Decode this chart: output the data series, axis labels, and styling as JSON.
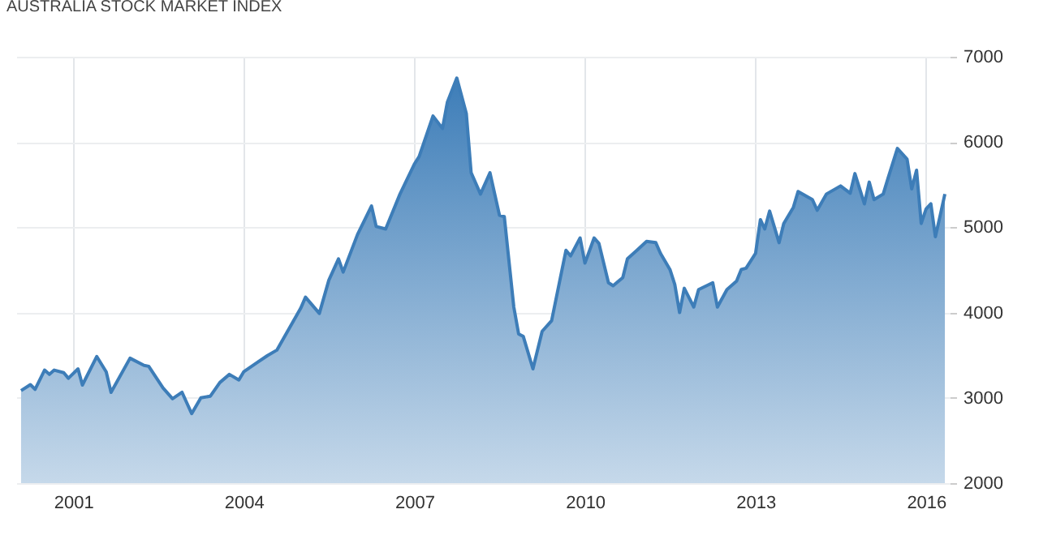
{
  "chart_data": {
    "type": "area",
    "title": "AUSTRALIA STOCK MARKET INDEX",
    "x": [
      "2000-02",
      "2000-04",
      "2000-05",
      "2000-07",
      "2000-08",
      "2000-09",
      "2000-11",
      "2000-12",
      "2001-02",
      "2001-03",
      "2001-06",
      "2001-08",
      "2001-09",
      "2002-01",
      "2002-04",
      "2002-05",
      "2002-08",
      "2002-10",
      "2002-12",
      "2003-02",
      "2003-04",
      "2003-06",
      "2003-08",
      "2003-10",
      "2003-12",
      "2004-01",
      "2004-04",
      "2004-06",
      "2004-08",
      "2005-01",
      "2005-02",
      "2005-05",
      "2005-07",
      "2005-09",
      "2005-10",
      "2006-01",
      "2006-04",
      "2006-05",
      "2006-07",
      "2006-10",
      "2007-01",
      "2007-02",
      "2007-05",
      "2007-07",
      "2007-08",
      "2007-10",
      "2007-12",
      "2008-01",
      "2008-03",
      "2008-05",
      "2008-07",
      "2008-08",
      "2008-10",
      "2008-11",
      "2008-12",
      "2009-02",
      "2009-04",
      "2009-06",
      "2009-09",
      "2009-10",
      "2009-12",
      "2010-01",
      "2010-03",
      "2010-04",
      "2010-06",
      "2010-07",
      "2010-09",
      "2010-10",
      "2010-12",
      "2011-02",
      "2011-04",
      "2011-05",
      "2011-07",
      "2011-08",
      "2011-09",
      "2011-10",
      "2011-12",
      "2012-01",
      "2012-04",
      "2012-05",
      "2012-07",
      "2012-09",
      "2012-10",
      "2012-11",
      "2013-01",
      "2013-02",
      "2013-03",
      "2013-04",
      "2013-06",
      "2013-07",
      "2013-09",
      "2013-10",
      "2014-01",
      "2014-02",
      "2014-04",
      "2014-07",
      "2014-09",
      "2014-10",
      "2014-12",
      "2015-01",
      "2015-02",
      "2015-04",
      "2015-05",
      "2015-07",
      "2015-09",
      "2015-10",
      "2015-11",
      "2015-12",
      "2016-01",
      "2016-02",
      "2016-03",
      "2016-04",
      "2016-05"
    ],
    "series": [
      {
        "color": "#3d7db8",
        "values": [
          3085,
          3155,
          3100,
          3325,
          3275,
          3325,
          3295,
          3230,
          3340,
          3150,
          3485,
          3305,
          3065,
          3465,
          3380,
          3370,
          3115,
          2990,
          3065,
          2815,
          3000,
          3020,
          3180,
          3275,
          3210,
          3305,
          3420,
          3495,
          3560,
          4050,
          4180,
          3990,
          4380,
          4630,
          4475,
          4915,
          5250,
          5010,
          4980,
          5390,
          5740,
          5830,
          6305,
          6160,
          6465,
          6750,
          6335,
          5640,
          5390,
          5640,
          5140,
          5125,
          4065,
          3750,
          3720,
          3340,
          3780,
          3905,
          4730,
          4665,
          4875,
          4580,
          4875,
          4810,
          4350,
          4315,
          4410,
          4630,
          4730,
          4835,
          4820,
          4695,
          4505,
          4330,
          4000,
          4285,
          4065,
          4270,
          4350,
          4065,
          4270,
          4370,
          4505,
          4520,
          4695,
          5090,
          4980,
          5190,
          4820,
          5045,
          5235,
          5420,
          5325,
          5200,
          5390,
          5485,
          5400,
          5630,
          5275,
          5530,
          5325,
          5390,
          5570,
          5925,
          5800,
          5450,
          5670,
          5045,
          5215,
          5275,
          4890,
          5140,
          5390
        ]
      }
    ],
    "xlim": [
      "2000-01",
      "2016-06"
    ],
    "xticks": [
      "2001",
      "2004",
      "2007",
      "2010",
      "2013",
      "2016"
    ],
    "ylim": [
      2000,
      7000
    ],
    "yticks": [
      2000,
      3000,
      4000,
      5000,
      6000,
      7000
    ],
    "grid": true
  }
}
